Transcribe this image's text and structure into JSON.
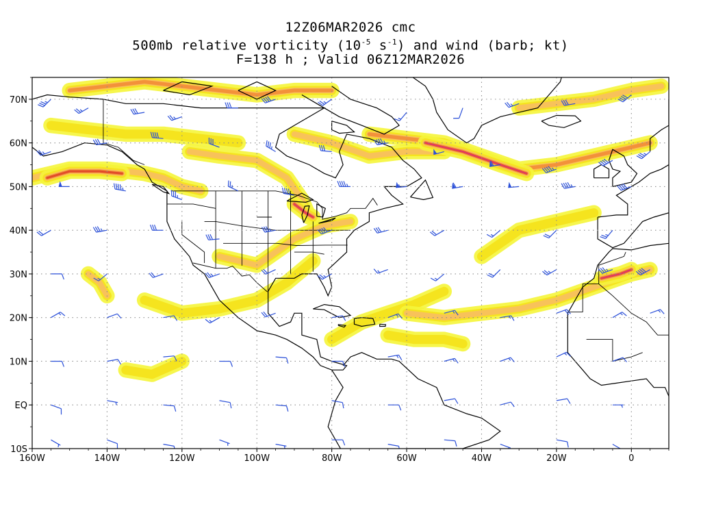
{
  "title": {
    "run": "12Z06MAR2026 cmc",
    "field_prefix": "500mb relative vorticity (10",
    "exp1": "-5",
    "mid": " s",
    "exp2": "-1",
    "field_suffix": ") and wind (barb; kt)",
    "valid": "F=138 h ; Valid 06Z12MAR2026"
  },
  "colors": {
    "vort_light": "#f5f53a",
    "vort_yellow": "#f5e41e",
    "vort_orange_light": "#f8c25a",
    "vort_orange": "#f3913a",
    "vort_red": "#e14b2a",
    "vort_magenta": "#e0307a",
    "barb": "#2a4fd8",
    "coast": "#000000",
    "grid": "#8c8c8c"
  },
  "chart_data": {
    "type": "map",
    "projection": "cylindrical equidistant",
    "lon_range": [
      -160,
      10
    ],
    "lat_range": [
      -10,
      75
    ],
    "lon_ticks": [
      {
        "value": -160,
        "label": "160W"
      },
      {
        "value": -140,
        "label": "140W"
      },
      {
        "value": -120,
        "label": "120W"
      },
      {
        "value": -100,
        "label": "100W"
      },
      {
        "value": -80,
        "label": "80W"
      },
      {
        "value": -60,
        "label": "60W"
      },
      {
        "value": -40,
        "label": "40W"
      },
      {
        "value": -20,
        "label": "20W"
      },
      {
        "value": 0,
        "label": "0"
      }
    ],
    "lat_ticks": [
      {
        "value": -10,
        "label": "10S"
      },
      {
        "value": 0,
        "label": "EQ"
      },
      {
        "value": 10,
        "label": "10N"
      },
      {
        "value": 20,
        "label": "20N"
      },
      {
        "value": 30,
        "label": "30N"
      },
      {
        "value": 40,
        "label": "40N"
      },
      {
        "value": 50,
        "label": "50N"
      },
      {
        "value": 60,
        "label": "60N"
      },
      {
        "value": 70,
        "label": "70N"
      }
    ],
    "grid": true,
    "vorticity_bands": [
      {
        "name": "n-pacific-jet",
        "level": 2,
        "points": [
          [
            -160,
            52
          ],
          [
            -150,
            54
          ],
          [
            -140,
            54
          ],
          [
            -130,
            53
          ],
          [
            -125,
            52
          ],
          [
            -120,
            50
          ],
          [
            -115,
            49
          ]
        ]
      },
      {
        "name": "pacific-core",
        "level": 4,
        "points": [
          [
            -156,
            52
          ],
          [
            -150,
            53.5
          ],
          [
            -142,
            53.5
          ],
          [
            -136,
            53
          ]
        ]
      },
      {
        "name": "alaska-band",
        "level": 1,
        "points": [
          [
            -155,
            64
          ],
          [
            -145,
            63
          ],
          [
            -135,
            62
          ],
          [
            -125,
            62
          ],
          [
            -115,
            61
          ],
          [
            -105,
            60
          ]
        ]
      },
      {
        "name": "arctic-band",
        "level": 3,
        "points": [
          [
            -150,
            72
          ],
          [
            -140,
            73
          ],
          [
            -130,
            74
          ],
          [
            -120,
            73
          ],
          [
            -110,
            72
          ],
          [
            -100,
            71
          ],
          [
            -90,
            72
          ],
          [
            -80,
            72
          ]
        ]
      },
      {
        "name": "canada-band",
        "level": 2,
        "points": [
          [
            -118,
            58
          ],
          [
            -110,
            57
          ],
          [
            -100,
            56
          ],
          [
            -92,
            52
          ],
          [
            -88,
            47
          ],
          [
            -86,
            43
          ]
        ]
      },
      {
        "name": "great-lakes-core",
        "level": 5,
        "points": [
          [
            -90,
            46
          ],
          [
            -87,
            44
          ],
          [
            -85,
            43
          ]
        ]
      },
      {
        "name": "hudson-band",
        "level": 2,
        "points": [
          [
            -90,
            62
          ],
          [
            -80,
            60
          ],
          [
            -70,
            57
          ],
          [
            -60,
            58
          ],
          [
            -50,
            58
          ]
        ]
      },
      {
        "name": "north-atlantic-jet",
        "level": 3,
        "points": [
          [
            -70,
            62
          ],
          [
            -60,
            61
          ],
          [
            -50,
            60
          ],
          [
            -40,
            57
          ],
          [
            -30,
            54
          ],
          [
            -20,
            55
          ],
          [
            -10,
            57
          ],
          [
            0,
            59
          ],
          [
            5,
            60
          ]
        ]
      },
      {
        "name": "atlantic-core",
        "level": 5,
        "points": [
          [
            -55,
            60
          ],
          [
            -45,
            58
          ],
          [
            -35,
            55
          ],
          [
            -28,
            53
          ]
        ]
      },
      {
        "name": "greenland-band",
        "level": 2,
        "points": [
          [
            -30,
            68
          ],
          [
            -20,
            69
          ],
          [
            -10,
            70
          ],
          [
            0,
            72
          ],
          [
            8,
            73
          ]
        ]
      },
      {
        "name": "us-south-band",
        "level": 2,
        "points": [
          [
            -110,
            34
          ],
          [
            -100,
            32
          ],
          [
            -95,
            35
          ],
          [
            -90,
            38
          ],
          [
            -82,
            41
          ],
          [
            -75,
            42
          ]
        ]
      },
      {
        "name": "gulf-band",
        "level": 1,
        "points": [
          [
            -130,
            24
          ],
          [
            -120,
            21
          ],
          [
            -110,
            22
          ],
          [
            -100,
            24
          ],
          [
            -92,
            28
          ],
          [
            -85,
            33
          ]
        ]
      },
      {
        "name": "caribbean-band",
        "level": 1,
        "points": [
          [
            -80,
            15
          ],
          [
            -72,
            19
          ],
          [
            -65,
            21
          ],
          [
            -58,
            23
          ],
          [
            -50,
            26
          ]
        ]
      },
      {
        "name": "atlantic-subtrop",
        "level": 2,
        "points": [
          [
            -60,
            21
          ],
          [
            -50,
            20
          ],
          [
            -40,
            21
          ],
          [
            -30,
            22
          ],
          [
            -20,
            24
          ],
          [
            -10,
            27
          ],
          [
            0,
            30
          ],
          [
            5,
            31
          ]
        ]
      },
      {
        "name": "morocco-core",
        "level": 5,
        "points": [
          [
            -8,
            29
          ],
          [
            -3,
            30
          ],
          [
            0,
            31
          ]
        ]
      },
      {
        "name": "e-atlantic-tropic",
        "level": 1,
        "points": [
          [
            -65,
            16
          ],
          [
            -58,
            15
          ],
          [
            -50,
            15
          ],
          [
            -45,
            14
          ]
        ]
      },
      {
        "name": "pacific-subtrop",
        "level": 2,
        "points": [
          [
            -145,
            30
          ],
          [
            -142,
            28
          ],
          [
            -140,
            25
          ]
        ]
      },
      {
        "name": "pac-tropic",
        "level": 1,
        "points": [
          [
            -135,
            8
          ],
          [
            -128,
            7
          ],
          [
            -120,
            10
          ]
        ]
      },
      {
        "name": "atl-mid",
        "level": 1,
        "points": [
          [
            -40,
            34
          ],
          [
            -35,
            37
          ],
          [
            -30,
            40
          ],
          [
            -20,
            42
          ],
          [
            -10,
            44
          ]
        ]
      }
    ],
    "wind_barbs": [
      [
        -155,
        70,
        225,
        35
      ],
      [
        -145,
        68,
        240,
        25
      ],
      [
        -130,
        67,
        260,
        30
      ],
      [
        -120,
        66,
        250,
        25
      ],
      [
        -105,
        68,
        270,
        30
      ],
      [
        -95,
        70,
        250,
        40
      ],
      [
        -80,
        70,
        235,
        25
      ],
      [
        -60,
        67,
        220,
        15
      ],
      [
        -45,
        68,
        200,
        10
      ],
      [
        -30,
        69,
        250,
        25
      ],
      [
        -15,
        69,
        260,
        30
      ],
      [
        0,
        71,
        230,
        40
      ],
      [
        -155,
        58,
        250,
        25
      ],
      [
        -140,
        60,
        260,
        30
      ],
      [
        -125,
        61,
        275,
        40
      ],
      [
        -110,
        59,
        290,
        30
      ],
      [
        -95,
        58,
        300,
        35
      ],
      [
        -80,
        58,
        275,
        30
      ],
      [
        -65,
        60,
        260,
        45
      ],
      [
        -50,
        58,
        255,
        50
      ],
      [
        -35,
        55,
        260,
        60
      ],
      [
        -20,
        54,
        250,
        45
      ],
      [
        -5,
        56,
        240,
        40
      ],
      [
        5,
        58,
        230,
        35
      ],
      [
        -150,
        50,
        270,
        50
      ],
      [
        -135,
        49,
        280,
        45
      ],
      [
        -120,
        47,
        290,
        35
      ],
      [
        -105,
        49,
        295,
        25
      ],
      [
        -90,
        48,
        280,
        40
      ],
      [
        -75,
        50,
        270,
        45
      ],
      [
        -60,
        50,
        265,
        55
      ],
      [
        -45,
        50,
        260,
        60
      ],
      [
        -30,
        50,
        265,
        50
      ],
      [
        -15,
        50,
        260,
        45
      ],
      [
        0,
        50,
        250,
        40
      ],
      [
        -155,
        40,
        240,
        20
      ],
      [
        -140,
        40,
        260,
        35
      ],
      [
        -125,
        40,
        270,
        30
      ],
      [
        -110,
        38,
        265,
        30
      ],
      [
        -95,
        40,
        260,
        35
      ],
      [
        -80,
        40,
        250,
        40
      ],
      [
        -65,
        40,
        255,
        30
      ],
      [
        -50,
        40,
        240,
        20
      ],
      [
        -35,
        40,
        230,
        15
      ],
      [
        -20,
        40,
        225,
        20
      ],
      [
        -5,
        40,
        220,
        25
      ],
      [
        -155,
        30,
        90,
        10
      ],
      [
        -140,
        30,
        230,
        15
      ],
      [
        -125,
        30,
        250,
        20
      ],
      [
        -110,
        30,
        250,
        25
      ],
      [
        -95,
        31,
        245,
        20
      ],
      [
        -80,
        30,
        240,
        25
      ],
      [
        -65,
        31,
        250,
        15
      ],
      [
        -50,
        30,
        230,
        15
      ],
      [
        -35,
        31,
        225,
        20
      ],
      [
        -20,
        31,
        240,
        25
      ],
      [
        -5,
        31,
        250,
        35
      ],
      [
        5,
        31,
        240,
        40
      ],
      [
        -155,
        20,
        60,
        15
      ],
      [
        -140,
        20,
        70,
        10
      ],
      [
        -125,
        20,
        80,
        10
      ],
      [
        -110,
        20,
        240,
        15
      ],
      [
        -95,
        21,
        250,
        20
      ],
      [
        -80,
        20,
        80,
        10
      ],
      [
        -65,
        20,
        70,
        15
      ],
      [
        -50,
        21,
        75,
        15
      ],
      [
        -35,
        20,
        80,
        15
      ],
      [
        -20,
        21,
        70,
        20
      ],
      [
        -5,
        20,
        60,
        15
      ],
      [
        5,
        21,
        70,
        15
      ],
      [
        -155,
        10,
        90,
        10
      ],
      [
        -140,
        10,
        80,
        10
      ],
      [
        -125,
        11,
        85,
        10
      ],
      [
        -110,
        10,
        90,
        10
      ],
      [
        -95,
        11,
        95,
        10
      ],
      [
        -80,
        10,
        90,
        10
      ],
      [
        -65,
        11,
        80,
        15
      ],
      [
        -50,
        10,
        75,
        15
      ],
      [
        -35,
        10,
        70,
        15
      ],
      [
        -20,
        11,
        65,
        15
      ],
      [
        -5,
        10,
        70,
        10
      ],
      [
        -155,
        0,
        110,
        10
      ],
      [
        -140,
        1,
        100,
        5
      ],
      [
        -125,
        0,
        95,
        10
      ],
      [
        -110,
        1,
        100,
        10
      ],
      [
        -95,
        0,
        95,
        10
      ],
      [
        -80,
        1,
        100,
        10
      ],
      [
        -65,
        0,
        90,
        10
      ],
      [
        -50,
        1,
        80,
        10
      ],
      [
        -35,
        0,
        75,
        10
      ],
      [
        -20,
        1,
        80,
        10
      ],
      [
        -5,
        0,
        90,
        5
      ],
      [
        -155,
        -8,
        120,
        5
      ],
      [
        -140,
        -8,
        110,
        10
      ],
      [
        -125,
        -9,
        100,
        10
      ],
      [
        -110,
        -8,
        110,
        5
      ],
      [
        -95,
        -9,
        100,
        5
      ],
      [
        -80,
        -8,
        90,
        10
      ],
      [
        -65,
        -9,
        100,
        10
      ],
      [
        -50,
        -8,
        95,
        10
      ],
      [
        -35,
        -9,
        110,
        5
      ],
      [
        -20,
        -8,
        100,
        10
      ],
      [
        -5,
        -9,
        120,
        5
      ]
    ]
  }
}
